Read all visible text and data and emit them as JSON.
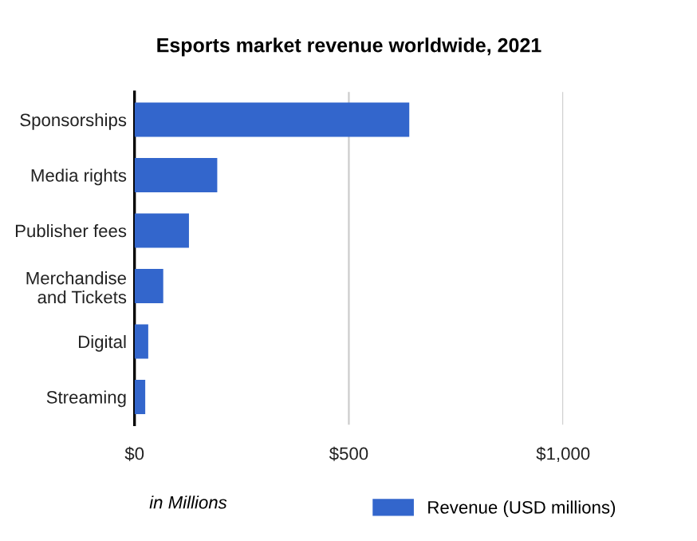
{
  "chart_data": {
    "type": "bar",
    "orientation": "horizontal",
    "title": "Esports market revenue worldwide, 2021",
    "categories": [
      "Sponsorships",
      "Media rights",
      "Publisher fees",
      "Merchandise\nand Tickets",
      "Digital",
      "Streaming"
    ],
    "series": [
      {
        "name": "Revenue (USD millions)",
        "color": "#3366cc",
        "values": [
          641,
          193,
          127,
          67,
          32,
          25
        ]
      }
    ],
    "xlim": [
      0,
      1000
    ],
    "xticks": [
      {
        "value": 0,
        "label": "$0"
      },
      {
        "value": 500,
        "label": "$500"
      },
      {
        "value": 1000,
        "label": "$1,000"
      }
    ],
    "grid": "x",
    "legend": "bottom",
    "annotations": [
      "in Millions"
    ]
  }
}
